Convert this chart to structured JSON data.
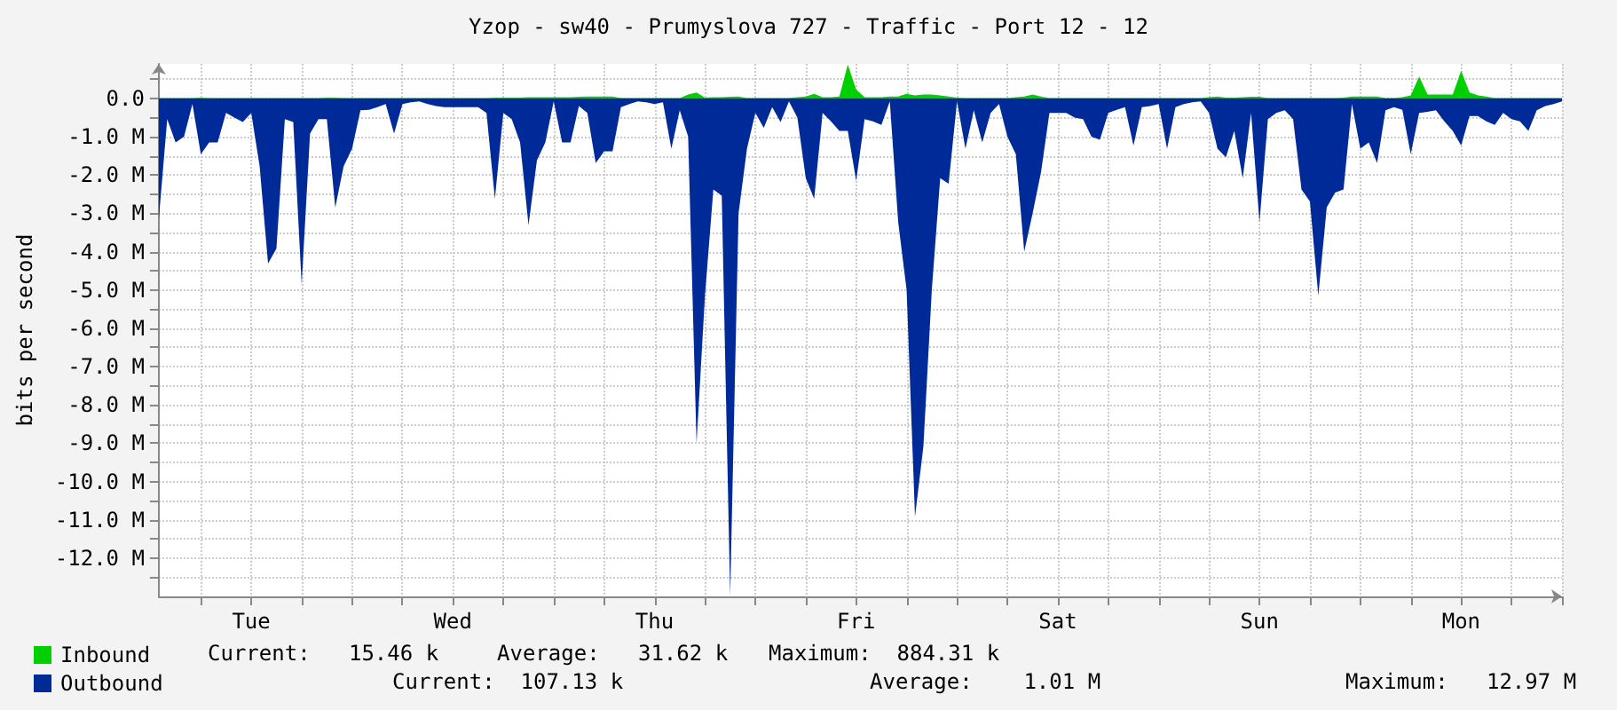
{
  "chart_data": {
    "type": "area",
    "title": "Yzop - sw40 - Prumyslova 727 - Traffic - Port 12 - 12",
    "ylabel": "bits per second",
    "categories": [
      null,
      null,
      null,
      null,
      null,
      null,
      null,
      null,
      null,
      null,
      null,
      "Tue",
      null,
      null,
      null,
      null,
      null,
      null,
      null,
      null,
      null,
      null,
      null,
      null,
      null,
      null,
      null,
      null,
      null,
      null,
      null,
      null,
      null,
      null,
      null,
      "Wed",
      null,
      null,
      null,
      null,
      null,
      null,
      null,
      null,
      null,
      null,
      null,
      null,
      null,
      null,
      null,
      null,
      null,
      null,
      null,
      null,
      null,
      null,
      null,
      "Thu",
      null,
      null,
      null,
      null,
      null,
      null,
      null,
      null,
      null,
      null,
      null,
      null,
      null,
      null,
      null,
      null,
      null,
      null,
      null,
      null,
      null,
      null,
      null,
      "Fri",
      null,
      null,
      null,
      null,
      null,
      null,
      null,
      null,
      null,
      null,
      null,
      null,
      null,
      null,
      null,
      null,
      null,
      null,
      null,
      null,
      null,
      null,
      null,
      "Sat",
      null,
      null,
      null,
      null,
      null,
      null,
      null,
      null,
      null,
      null,
      null,
      null,
      null,
      null,
      null,
      null,
      null,
      null,
      null,
      null,
      null,
      null,
      null,
      "Sun",
      null,
      null,
      null,
      null,
      null,
      null,
      null,
      null,
      null,
      null,
      null,
      null,
      null,
      null,
      null,
      null,
      null,
      null,
      null,
      null,
      null,
      null,
      null,
      "Mon",
      null,
      null,
      null,
      null,
      null,
      null,
      null,
      null,
      null,
      null,
      null,
      null
    ],
    "ylim": [
      -13,
      0.9
    ],
    "yticks": [
      {
        "value": 0.5,
        "label": null
      },
      {
        "value": 0,
        "label": "0.0"
      },
      {
        "value": -0.5,
        "label": null
      },
      {
        "value": -1,
        "label": "-1.0 M"
      },
      {
        "value": -1.5,
        "label": null
      },
      {
        "value": -2,
        "label": "-2.0 M"
      },
      {
        "value": -2.5,
        "label": null
      },
      {
        "value": -3,
        "label": "-3.0 M"
      },
      {
        "value": -3.5,
        "label": null
      },
      {
        "value": -4,
        "label": "-4.0 M"
      },
      {
        "value": -4.5,
        "label": null
      },
      {
        "value": -5,
        "label": "-5.0 M"
      },
      {
        "value": -5.5,
        "label": null
      },
      {
        "value": -6,
        "label": "-6.0 M"
      },
      {
        "value": -6.5,
        "label": null
      },
      {
        "value": -7,
        "label": "-7.0 M"
      },
      {
        "value": -7.5,
        "label": null
      },
      {
        "value": -8,
        "label": "-8.0 M"
      },
      {
        "value": -8.5,
        "label": null
      },
      {
        "value": -9,
        "label": "-9.0 M"
      },
      {
        "value": -9.5,
        "label": null
      },
      {
        "value": -10,
        "label": "-10.0 M"
      },
      {
        "value": -10.5,
        "label": null
      },
      {
        "value": -11,
        "label": "-11.0 M"
      },
      {
        "value": -11.5,
        "label": null
      },
      {
        "value": -12,
        "label": "-12.0 M"
      },
      {
        "value": -12.5,
        "label": null
      }
    ],
    "grid": true,
    "legend": "bottom left",
    "marker": "none",
    "annotations": [
      "Current:   15.46 k",
      "Average:   31.62 k",
      "Maximum:  884.31 k",
      "Current:  107.13 k",
      "Average:    1.01 M",
      "Maximum:   12.97 M"
    ],
    "series": [
      {
        "name": "Inbound",
        "color": "#00cf00",
        "values": [
          0.01,
          0.01,
          0.01,
          0.01,
          0.01,
          0.02,
          0.01,
          0.01,
          0.01,
          0.01,
          0.01,
          0.01,
          0.01,
          0.01,
          0.01,
          0.01,
          0.01,
          0.01,
          0.01,
          0.01,
          0.02,
          0.02,
          0.01,
          0.01,
          0.01,
          0.01,
          0.01,
          0.01,
          0.01,
          0.01,
          0.01,
          0.01,
          0.01,
          0.01,
          0.01,
          0.01,
          0.01,
          0.01,
          0.01,
          0.01,
          0.02,
          0.02,
          0.02,
          0.02,
          0.03,
          0.03,
          0.03,
          0.03,
          0.03,
          0.03,
          0.04,
          0.05,
          0.05,
          0.05,
          0.05,
          0.01,
          0.01,
          0.01,
          0.01,
          0.01,
          0.01,
          0.01,
          0.01,
          0.1,
          0.15,
          0.02,
          0.03,
          0.03,
          0.04,
          0.05,
          0.01,
          0.01,
          0.01,
          0.01,
          0.01,
          0.01,
          0.03,
          0.05,
          0.12,
          0.03,
          0.03,
          0.05,
          0.88,
          0.23,
          0.03,
          0.03,
          0.03,
          0.05,
          0.05,
          0.12,
          0.08,
          0.1,
          0.1,
          0.08,
          0.05,
          0.02,
          0.01,
          0.01,
          0.01,
          0.01,
          0.01,
          0.01,
          0.03,
          0.05,
          0.1,
          0.05,
          0.01,
          0.01,
          0.01,
          0.01,
          0.01,
          0.01,
          0.01,
          0.01,
          0.01,
          0.01,
          0.01,
          0.01,
          0.01,
          0.01,
          0.01,
          0.01,
          0.01,
          0.01,
          0.01,
          0.03,
          0.05,
          0.02,
          0.02,
          0.03,
          0.04,
          0.04,
          0.01,
          0.01,
          0.01,
          0.01,
          0.01,
          0.01,
          0.01,
          0.01,
          0.01,
          0.02,
          0.05,
          0.05,
          0.05,
          0.05,
          0.01,
          0.01,
          0.03,
          0.08,
          0.57,
          0.1,
          0.1,
          0.1,
          0.1,
          0.72,
          0.15,
          0.08,
          0.05,
          0.01,
          0.01,
          0.01,
          0.01,
          0.01,
          0.01,
          0.01,
          0.01,
          0.01
        ]
      },
      {
        "name": "Outbound",
        "color": "#002a97",
        "values": [
          -3.15,
          -0.54,
          -1.15,
          -1.0,
          -0.15,
          -1.46,
          -1.15,
          -1.15,
          -0.38,
          -0.5,
          -0.62,
          -0.38,
          -1.77,
          -4.31,
          -3.92,
          -0.54,
          -0.62,
          -4.85,
          -0.92,
          -0.54,
          -0.54,
          -2.85,
          -1.77,
          -1.31,
          -0.31,
          -0.3,
          -0.23,
          -0.15,
          -0.92,
          -0.15,
          -0.1,
          -0.08,
          -0.15,
          -0.2,
          -0.23,
          -0.23,
          -0.23,
          -0.23,
          -0.23,
          -0.38,
          -2.62,
          -0.38,
          -0.54,
          -1.15,
          -3.31,
          -1.62,
          -1.15,
          -0.08,
          -1.15,
          -1.15,
          -0.2,
          -0.38,
          -1.69,
          -1.38,
          -1.38,
          -0.23,
          -0.15,
          -0.08,
          -0.1,
          -0.15,
          -0.1,
          -1.31,
          -0.31,
          -1.0,
          -9.0,
          -5.15,
          -2.38,
          -2.54,
          -12.97,
          -3.0,
          -1.31,
          -0.38,
          -0.77,
          -0.23,
          -0.62,
          -0.08,
          -0.5,
          -2.08,
          -2.62,
          -0.38,
          -0.6,
          -0.85,
          -0.85,
          -2.15,
          -0.54,
          -0.6,
          -0.69,
          -0.08,
          -3.23,
          -5.0,
          -10.92,
          -9.08,
          -5.0,
          -2.08,
          -2.23,
          -0.08,
          -1.31,
          -0.31,
          -1.15,
          -0.38,
          -0.15,
          -1.0,
          -1.46,
          -4.0,
          -3.0,
          -1.92,
          -0.38,
          -0.38,
          -0.38,
          -0.5,
          -0.54,
          -1.0,
          -1.08,
          -0.38,
          -0.3,
          -0.23,
          -1.23,
          -0.23,
          -0.2,
          -0.15,
          -1.31,
          -0.23,
          -0.15,
          -0.1,
          -0.08,
          -0.38,
          -1.31,
          -1.54,
          -0.85,
          -2.08,
          -0.38,
          -3.23,
          -0.54,
          -0.38,
          -0.31,
          -0.54,
          -2.38,
          -2.69,
          -5.15,
          -2.85,
          -2.46,
          -2.38,
          -0.15,
          -1.31,
          -1.15,
          -1.69,
          -0.31,
          -0.23,
          -0.3,
          -1.46,
          -0.38,
          -0.35,
          -0.31,
          -0.6,
          -0.85,
          -1.23,
          -0.46,
          -0.46,
          -0.6,
          -0.69,
          -0.38,
          -0.54,
          -0.6,
          -0.85,
          -0.31,
          -0.2,
          -0.15,
          -0.08
        ]
      }
    ]
  }
}
